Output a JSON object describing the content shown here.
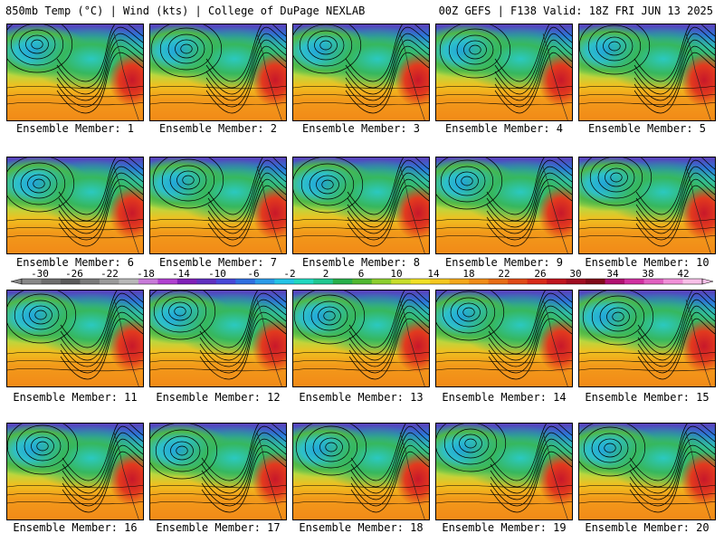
{
  "header": {
    "title_left": "850mb Temp (°C) | Wind (kts) | College of DuPage NEXLAB",
    "title_right": "00Z GEFS | F138 Valid: 18Z FRI JUN 13 2025"
  },
  "panels": [
    {
      "caption": "Ensemble Member: 1"
    },
    {
      "caption": "Ensemble Member: 2"
    },
    {
      "caption": "Ensemble Member: 3"
    },
    {
      "caption": "Ensemble Member: 4"
    },
    {
      "caption": "Ensemble Member: 5"
    },
    {
      "caption": "Ensemble Member: 6"
    },
    {
      "caption": "Ensemble Member: 7"
    },
    {
      "caption": "Ensemble Member: 8"
    },
    {
      "caption": "Ensemble Member: 9"
    },
    {
      "caption": "Ensemble Member: 10"
    },
    {
      "caption": "Ensemble Member: 11"
    },
    {
      "caption": "Ensemble Member: 12"
    },
    {
      "caption": "Ensemble Member: 13"
    },
    {
      "caption": "Ensemble Member: 14"
    },
    {
      "caption": "Ensemble Member: 15"
    },
    {
      "caption": "Ensemble Member: 16"
    },
    {
      "caption": "Ensemble Member: 17"
    },
    {
      "caption": "Ensemble Member: 18"
    },
    {
      "caption": "Ensemble Member: 19"
    },
    {
      "caption": "Ensemble Member: 20"
    }
  ],
  "colorbar": {
    "labels": [
      "-30",
      "-26",
      "-22",
      "-18",
      "-14",
      "-10",
      "-6",
      "-2",
      "2",
      "6",
      "10",
      "14",
      "18",
      "22",
      "26",
      "30",
      "34",
      "38",
      "42"
    ],
    "colors": [
      "#888888",
      "#6e6e6e",
      "#5a5a5a",
      "#7a7a7a",
      "#9a9a9a",
      "#b8b8b8",
      "#c87ad8",
      "#b040d0",
      "#8020b8",
      "#6030c0",
      "#4848d8",
      "#2f6fe0",
      "#2a9ae8",
      "#23c4e6",
      "#20d8c0",
      "#20c890",
      "#28b04a",
      "#50b830",
      "#8ccf2e",
      "#c8de2a",
      "#f0e024",
      "#f4c81e",
      "#f4a81a",
      "#f08c16",
      "#e86c14",
      "#e04a16",
      "#d82a18",
      "#c0141e",
      "#a00c20",
      "#800818",
      "#b01070",
      "#d030a0",
      "#e060c0",
      "#f090d8",
      "#f8c0e8"
    ]
  }
}
